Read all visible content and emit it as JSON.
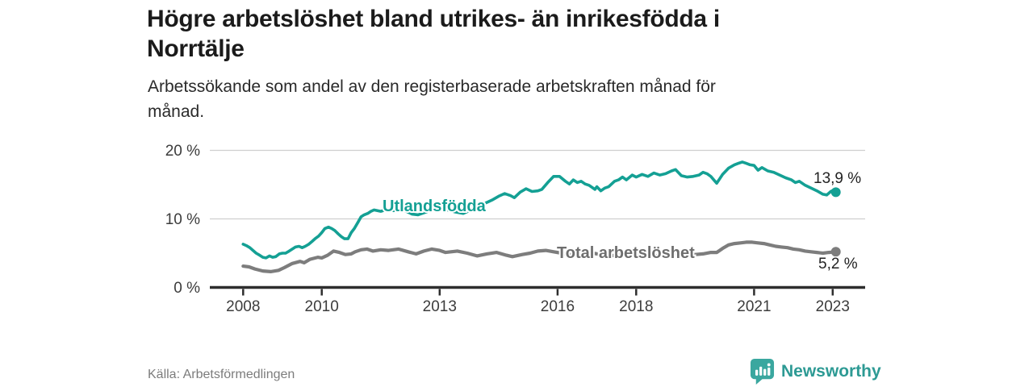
{
  "header": {
    "title_line1": "Högre arbetslöshet bland utrikes- än inrikesfödda i",
    "title_line2": "Norrtälje",
    "subtitle_line1": "Arbetssökande som andel av den registerbaserade arbetskraften månad för",
    "subtitle_line2": "månad."
  },
  "chart_data": {
    "type": "line",
    "title": "Högre arbetslöshet bland utrikes- än inrikesfödda i Norrtälje",
    "subtitle": "Arbetssökande som andel av den registerbaserade arbetskraften månad för månad.",
    "unit": "%",
    "xlabel": "",
    "ylabel": "",
    "xlim": [
      2007.55,
      2023.8
    ],
    "ylim": [
      0,
      21
    ],
    "grid": "horizontal",
    "legend_position": "inline-labels",
    "x_ticks": [
      2008,
      2010,
      2013,
      2016,
      2018,
      2021,
      2023
    ],
    "x_tick_labels": [
      "2008",
      "2010",
      "2013",
      "2016",
      "2018",
      "2021",
      "2023"
    ],
    "y_ticks": [
      0,
      10,
      20
    ],
    "y_tick_labels": [
      "0 %",
      "10 %",
      "20 %"
    ],
    "series": [
      {
        "id": "utlandsfodda",
        "name": "Utlandsfödda",
        "color": "#14a094",
        "end_label": "13,9 %",
        "end_value": 13.9,
        "points": [
          [
            2008.0,
            6.3
          ],
          [
            2008.08,
            6.1
          ],
          [
            2008.17,
            5.8
          ],
          [
            2008.25,
            5.4
          ],
          [
            2008.33,
            5.0
          ],
          [
            2008.42,
            4.7
          ],
          [
            2008.5,
            4.4
          ],
          [
            2008.58,
            4.3
          ],
          [
            2008.67,
            4.6
          ],
          [
            2008.75,
            4.4
          ],
          [
            2008.83,
            4.5
          ],
          [
            2008.92,
            4.9
          ],
          [
            2009.0,
            5.0
          ],
          [
            2009.08,
            5.0
          ],
          [
            2009.17,
            5.3
          ],
          [
            2009.25,
            5.6
          ],
          [
            2009.33,
            5.9
          ],
          [
            2009.42,
            6.0
          ],
          [
            2009.5,
            5.8
          ],
          [
            2009.58,
            6.0
          ],
          [
            2009.67,
            6.3
          ],
          [
            2009.75,
            6.7
          ],
          [
            2009.83,
            7.1
          ],
          [
            2009.92,
            7.5
          ],
          [
            2010.0,
            8.0
          ],
          [
            2010.08,
            8.6
          ],
          [
            2010.17,
            8.8
          ],
          [
            2010.25,
            8.6
          ],
          [
            2010.33,
            8.3
          ],
          [
            2010.42,
            7.8
          ],
          [
            2010.5,
            7.4
          ],
          [
            2010.58,
            7.1
          ],
          [
            2010.67,
            7.1
          ],
          [
            2010.75,
            8.0
          ],
          [
            2010.83,
            8.6
          ],
          [
            2010.92,
            9.5
          ],
          [
            2011.0,
            10.3
          ],
          [
            2011.08,
            10.6
          ],
          [
            2011.17,
            10.8
          ],
          [
            2011.25,
            11.1
          ],
          [
            2011.33,
            11.3
          ],
          [
            2011.5,
            11.1
          ],
          [
            2011.67,
            11.4
          ],
          [
            2011.83,
            11.2
          ],
          [
            2012.0,
            11.5
          ],
          [
            2012.15,
            11.1
          ],
          [
            2012.3,
            10.7
          ],
          [
            2012.45,
            10.6
          ],
          [
            2012.6,
            10.9
          ],
          [
            2012.75,
            11.2
          ],
          [
            2012.9,
            11.5
          ],
          [
            2013.0,
            11.6
          ],
          [
            2013.2,
            11.3
          ],
          [
            2013.4,
            11.0
          ],
          [
            2013.6,
            10.8
          ],
          [
            2013.8,
            11.3
          ],
          [
            2014.0,
            11.9
          ],
          [
            2014.2,
            12.4
          ],
          [
            2014.35,
            12.8
          ],
          [
            2014.5,
            13.3
          ],
          [
            2014.65,
            13.7
          ],
          [
            2014.8,
            13.4
          ],
          [
            2014.9,
            13.1
          ],
          [
            2015.05,
            13.9
          ],
          [
            2015.2,
            14.4
          ],
          [
            2015.35,
            14.0
          ],
          [
            2015.5,
            14.1
          ],
          [
            2015.6,
            14.3
          ],
          [
            2015.75,
            15.3
          ],
          [
            2015.9,
            16.2
          ],
          [
            2016.05,
            16.2
          ],
          [
            2016.2,
            15.5
          ],
          [
            2016.3,
            15.1
          ],
          [
            2016.4,
            15.7
          ],
          [
            2016.5,
            15.3
          ],
          [
            2016.6,
            15.5
          ],
          [
            2016.7,
            15.1
          ],
          [
            2016.8,
            14.9
          ],
          [
            2016.95,
            14.3
          ],
          [
            2017.0,
            14.7
          ],
          [
            2017.1,
            14.1
          ],
          [
            2017.2,
            14.5
          ],
          [
            2017.3,
            14.7
          ],
          [
            2017.45,
            15.5
          ],
          [
            2017.55,
            15.7
          ],
          [
            2017.65,
            16.1
          ],
          [
            2017.75,
            15.7
          ],
          [
            2017.9,
            16.4
          ],
          [
            2018.0,
            16.1
          ],
          [
            2018.15,
            16.5
          ],
          [
            2018.3,
            16.2
          ],
          [
            2018.45,
            16.7
          ],
          [
            2018.6,
            16.4
          ],
          [
            2018.75,
            16.6
          ],
          [
            2018.9,
            17.0
          ],
          [
            2019.0,
            17.2
          ],
          [
            2019.15,
            16.3
          ],
          [
            2019.3,
            16.1
          ],
          [
            2019.45,
            16.2
          ],
          [
            2019.6,
            16.4
          ],
          [
            2019.7,
            16.8
          ],
          [
            2019.8,
            16.6
          ],
          [
            2019.9,
            16.2
          ],
          [
            2020.05,
            15.2
          ],
          [
            2020.2,
            16.5
          ],
          [
            2020.35,
            17.4
          ],
          [
            2020.5,
            17.9
          ],
          [
            2020.6,
            18.1
          ],
          [
            2020.7,
            18.3
          ],
          [
            2020.8,
            18.1
          ],
          [
            2020.9,
            17.9
          ],
          [
            2021.0,
            17.8
          ],
          [
            2021.1,
            17.1
          ],
          [
            2021.2,
            17.5
          ],
          [
            2021.35,
            17.0
          ],
          [
            2021.5,
            16.8
          ],
          [
            2021.65,
            16.4
          ],
          [
            2021.8,
            16.0
          ],
          [
            2021.95,
            15.7
          ],
          [
            2022.05,
            15.3
          ],
          [
            2022.15,
            15.5
          ],
          [
            2022.3,
            14.9
          ],
          [
            2022.45,
            14.5
          ],
          [
            2022.6,
            14.1
          ],
          [
            2022.75,
            13.6
          ],
          [
            2022.85,
            13.5
          ],
          [
            2022.95,
            14.0
          ],
          [
            2023.02,
            14.2
          ],
          [
            2023.08,
            13.9
          ]
        ]
      },
      {
        "id": "total",
        "name": "Total arbetslöshet",
        "color": "#7d7d7d",
        "end_label": "5,2 %",
        "end_value": 5.2,
        "points": [
          [
            2008.0,
            3.1
          ],
          [
            2008.15,
            3.0
          ],
          [
            2008.3,
            2.7
          ],
          [
            2008.5,
            2.4
          ],
          [
            2008.7,
            2.3
          ],
          [
            2008.9,
            2.5
          ],
          [
            2009.05,
            2.9
          ],
          [
            2009.25,
            3.5
          ],
          [
            2009.45,
            3.8
          ],
          [
            2009.55,
            3.6
          ],
          [
            2009.7,
            4.1
          ],
          [
            2009.9,
            4.4
          ],
          [
            2010.0,
            4.3
          ],
          [
            2010.15,
            4.7
          ],
          [
            2010.3,
            5.3
          ],
          [
            2010.45,
            5.1
          ],
          [
            2010.6,
            4.8
          ],
          [
            2010.75,
            4.9
          ],
          [
            2010.85,
            5.2
          ],
          [
            2011.0,
            5.5
          ],
          [
            2011.15,
            5.6
          ],
          [
            2011.3,
            5.3
          ],
          [
            2011.5,
            5.5
          ],
          [
            2011.7,
            5.4
          ],
          [
            2011.95,
            5.6
          ],
          [
            2012.2,
            5.2
          ],
          [
            2012.4,
            4.9
          ],
          [
            2012.6,
            5.3
          ],
          [
            2012.8,
            5.6
          ],
          [
            2013.0,
            5.4
          ],
          [
            2013.15,
            5.1
          ],
          [
            2013.45,
            5.3
          ],
          [
            2013.7,
            5.0
          ],
          [
            2013.95,
            4.6
          ],
          [
            2014.2,
            4.9
          ],
          [
            2014.45,
            5.1
          ],
          [
            2014.7,
            4.7
          ],
          [
            2014.85,
            4.5
          ],
          [
            2015.1,
            4.8
          ],
          [
            2015.3,
            5.0
          ],
          [
            2015.5,
            5.3
          ],
          [
            2015.7,
            5.4
          ],
          [
            2015.9,
            5.2
          ],
          [
            2016.1,
            5.0
          ],
          [
            2016.3,
            4.8
          ],
          [
            2016.5,
            4.6
          ],
          [
            2016.7,
            4.8
          ],
          [
            2016.9,
            5.0
          ],
          [
            2017.1,
            4.8
          ],
          [
            2017.3,
            4.6
          ],
          [
            2017.5,
            4.7
          ],
          [
            2017.7,
            4.9
          ],
          [
            2017.9,
            5.1
          ],
          [
            2018.1,
            4.9
          ],
          [
            2018.3,
            4.7
          ],
          [
            2018.5,
            4.6
          ],
          [
            2018.7,
            4.7
          ],
          [
            2018.9,
            4.9
          ],
          [
            2019.1,
            5.0
          ],
          [
            2019.3,
            4.9
          ],
          [
            2019.5,
            4.8
          ],
          [
            2019.7,
            4.9
          ],
          [
            2019.9,
            5.1
          ],
          [
            2020.05,
            5.1
          ],
          [
            2020.2,
            5.7
          ],
          [
            2020.35,
            6.2
          ],
          [
            2020.5,
            6.4
          ],
          [
            2020.65,
            6.5
          ],
          [
            2020.8,
            6.6
          ],
          [
            2020.95,
            6.6
          ],
          [
            2021.1,
            6.5
          ],
          [
            2021.25,
            6.4
          ],
          [
            2021.4,
            6.2
          ],
          [
            2021.55,
            6.0
          ],
          [
            2021.7,
            5.9
          ],
          [
            2021.85,
            5.8
          ],
          [
            2022.0,
            5.6
          ],
          [
            2022.15,
            5.5
          ],
          [
            2022.3,
            5.3
          ],
          [
            2022.45,
            5.2
          ],
          [
            2022.6,
            5.1
          ],
          [
            2022.75,
            5.0
          ],
          [
            2022.9,
            5.1
          ],
          [
            2023.08,
            5.2
          ]
        ]
      }
    ]
  },
  "footer": {
    "source": "Källa: Arbetsförmedlingen",
    "brand": "Newsworthy"
  },
  "colors": {
    "accent_teal": "#14a094",
    "gray_line": "#7d7d7d",
    "axis": "#2e2e2e",
    "grid": "#cfcfcf",
    "logo_teal": "#3aa79f"
  }
}
